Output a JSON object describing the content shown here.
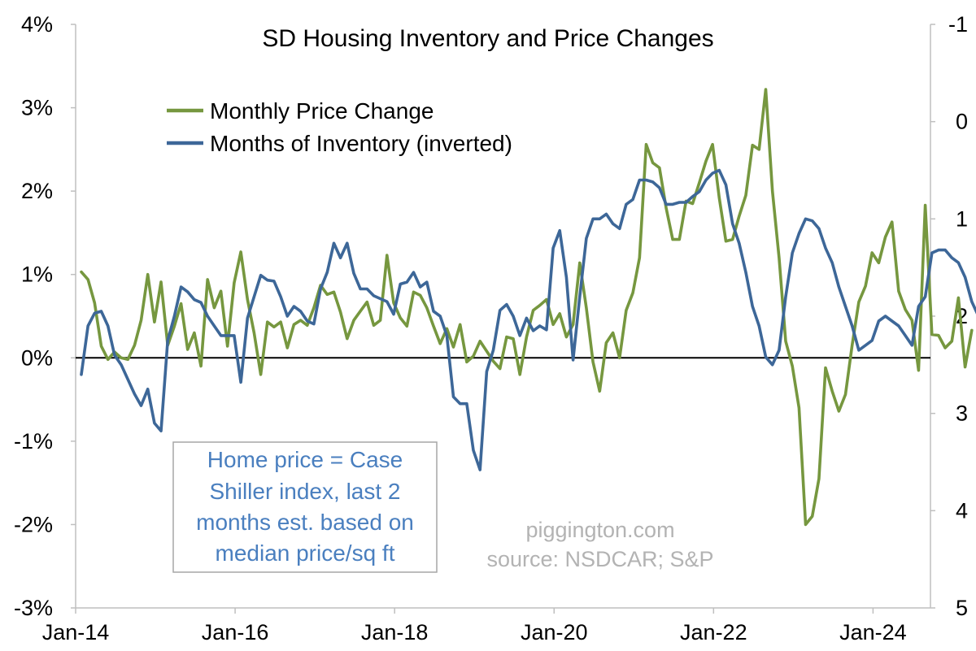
{
  "chart_data": {
    "type": "line",
    "title": "SD Housing Inventory and Price Changes",
    "x_tick_labels": [
      "Jan-14",
      "Jan-16",
      "Jan-18",
      "Jan-20",
      "Jan-22",
      "Jan-24"
    ],
    "x_range": [
      "2014-01",
      "2024-08"
    ],
    "y_left": {
      "tick_labels": [
        "4%",
        "3%",
        "2%",
        "1%",
        "0%",
        "-1%",
        "-2%",
        "-3%"
      ],
      "ylim": [
        -3,
        4
      ],
      "unit": "%"
    },
    "y_right": {
      "tick_labels": [
        "-1",
        "0",
        "1",
        "2",
        "3",
        "4",
        "5"
      ],
      "ylim": [
        5,
        -1
      ],
      "inverted": true
    },
    "zero_line": true,
    "grid": false,
    "legend_position": "top-left",
    "series": [
      {
        "name": "Monthly Price Change",
        "axis": "left",
        "color": "#76973f",
        "start": "2014-01",
        "values": [
          1.03,
          0.94,
          0.66,
          0.14,
          -0.02,
          0.07,
          0.0,
          -0.02,
          0.15,
          0.45,
          1.0,
          0.43,
          0.91,
          0.15,
          0.38,
          0.65,
          0.1,
          0.3,
          -0.1,
          0.94,
          0.6,
          0.8,
          0.14,
          0.9,
          1.27,
          0.7,
          0.3,
          -0.2,
          0.43,
          0.37,
          0.43,
          0.12,
          0.4,
          0.45,
          0.39,
          0.6,
          0.87,
          0.76,
          0.79,
          0.55,
          0.23,
          0.45,
          0.56,
          0.67,
          0.39,
          0.45,
          1.23,
          0.66,
          0.48,
          0.38,
          0.79,
          0.75,
          0.6,
          0.38,
          0.17,
          0.35,
          0.13,
          0.4,
          -0.05,
          0.02,
          0.2,
          0.08,
          -0.04,
          -0.13,
          0.25,
          0.23,
          -0.2,
          0.25,
          0.57,
          0.63,
          0.7,
          0.4,
          0.53,
          0.25,
          0.4,
          1.14,
          0.6,
          -0.05,
          -0.4,
          0.18,
          0.3,
          0.0,
          0.57,
          0.78,
          1.2,
          2.56,
          2.34,
          2.28,
          1.8,
          1.42,
          1.42,
          1.88,
          1.85,
          2.1,
          2.36,
          2.56,
          1.92,
          1.4,
          1.42,
          1.7,
          1.95,
          2.55,
          2.5,
          3.22,
          2.0,
          1.2,
          0.2,
          -0.1,
          -0.6,
          -2.0,
          -1.9,
          -1.45,
          -0.12,
          -0.4,
          -0.64,
          -0.44,
          0.15,
          0.67,
          0.86,
          1.26,
          1.14,
          1.45,
          1.63,
          0.8,
          0.58,
          0.45,
          -0.15,
          1.83,
          0.28,
          0.27,
          0.12,
          0.2,
          0.72,
          -0.11,
          0.33
        ]
      },
      {
        "name": "Months of Inventory (inverted)",
        "axis": "right",
        "color": "#3d6798",
        "start": "2014-01",
        "values": [
          2.6,
          2.1,
          1.97,
          1.95,
          2.1,
          2.4,
          2.5,
          2.65,
          2.8,
          2.92,
          2.75,
          3.1,
          3.18,
          2.25,
          2.0,
          1.7,
          1.75,
          1.83,
          1.86,
          2.0,
          2.1,
          2.2,
          2.2,
          2.2,
          2.68,
          2.02,
          1.8,
          1.58,
          1.63,
          1.64,
          1.8,
          2.0,
          1.9,
          1.95,
          2.05,
          2.08,
          1.72,
          1.55,
          1.25,
          1.4,
          1.25,
          1.56,
          1.72,
          1.72,
          1.79,
          1.82,
          1.85,
          1.98,
          1.67,
          1.65,
          1.55,
          1.7,
          1.65,
          1.95,
          2.0,
          2.2,
          2.83,
          2.9,
          2.9,
          3.38,
          3.58,
          2.57,
          2.35,
          1.94,
          1.88,
          2.0,
          2.2,
          2.02,
          2.15,
          2.1,
          2.14,
          1.3,
          1.12,
          1.6,
          2.45,
          1.8,
          1.2,
          1.0,
          1.0,
          0.95,
          1.05,
          1.1,
          0.85,
          0.8,
          0.6,
          0.6,
          0.62,
          0.68,
          0.85,
          0.85,
          0.83,
          0.83,
          0.77,
          0.72,
          0.6,
          0.53,
          0.5,
          0.65,
          1.05,
          1.25,
          1.55,
          1.9,
          2.1,
          2.42,
          2.5,
          2.35,
          1.8,
          1.35,
          1.15,
          1.0,
          1.02,
          1.1,
          1.3,
          1.45,
          1.7,
          1.9,
          2.1,
          2.35,
          2.3,
          2.25,
          2.05,
          2.0,
          2.05,
          2.1,
          2.2,
          2.3,
          1.9,
          1.8,
          1.35,
          1.32,
          1.32,
          1.4,
          1.45,
          1.6,
          1.85,
          2.0,
          2.1
        ]
      }
    ],
    "annotations": {
      "note_lines": [
        "Home price = Case",
        "Shiller index, last 2",
        "months est. based on",
        "median price/sq ft"
      ],
      "watermark_lines": [
        "piggington.com",
        "source: NSDCAR; S&P"
      ]
    }
  }
}
